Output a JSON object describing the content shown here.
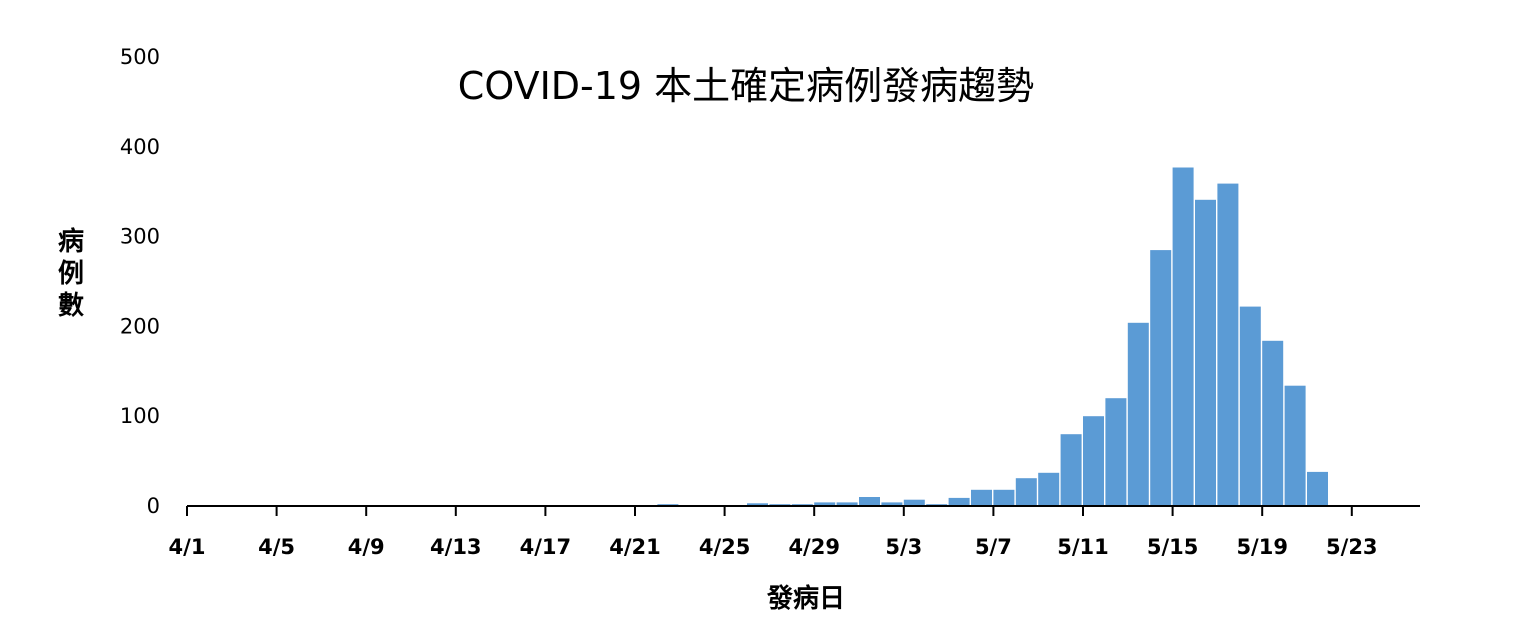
{
  "chart_data": {
    "type": "bar",
    "title": "COVID-19 本土確定病例發病趨勢",
    "xlabel": "發病日",
    "ylabel": "病例數",
    "ylim": [
      0,
      500
    ],
    "yticks": [
      0,
      100,
      200,
      300,
      400,
      500
    ],
    "xtick_labels": [
      "4/1",
      "4/5",
      "4/9",
      "4/13",
      "4/17",
      "4/21",
      "4/25",
      "4/29",
      "5/3",
      "5/7",
      "5/11",
      "5/15",
      "5/19",
      "5/23"
    ],
    "grid": false,
    "bar_color": "#5b9bd5",
    "categories": [
      "4/1",
      "4/2",
      "4/3",
      "4/4",
      "4/5",
      "4/6",
      "4/7",
      "4/8",
      "4/9",
      "4/10",
      "4/11",
      "4/12",
      "4/13",
      "4/14",
      "4/15",
      "4/16",
      "4/17",
      "4/18",
      "4/19",
      "4/20",
      "4/21",
      "4/22",
      "4/23",
      "4/24",
      "4/25",
      "4/26",
      "4/27",
      "4/28",
      "4/29",
      "4/30",
      "5/1",
      "5/2",
      "5/3",
      "5/4",
      "5/5",
      "5/6",
      "5/7",
      "5/8",
      "5/9",
      "5/10",
      "5/11",
      "5/12",
      "5/13",
      "5/14",
      "5/15",
      "5/16",
      "5/17",
      "5/18",
      "5/19",
      "5/20",
      "5/21",
      "5/22",
      "5/23",
      "5/24",
      "5/25"
    ],
    "values": [
      0,
      0,
      0,
      0,
      0,
      0,
      0,
      0,
      0,
      0,
      0,
      0,
      0,
      0,
      0,
      0,
      1,
      0,
      0,
      0,
      0,
      2,
      1,
      1,
      0,
      3,
      2,
      2,
      4,
      4,
      10,
      4,
      7,
      2,
      9,
      18,
      18,
      31,
      37,
      80,
      100,
      120,
      204,
      285,
      377,
      341,
      359,
      222,
      184,
      134,
      38,
      0,
      0,
      0,
      0
    ]
  }
}
